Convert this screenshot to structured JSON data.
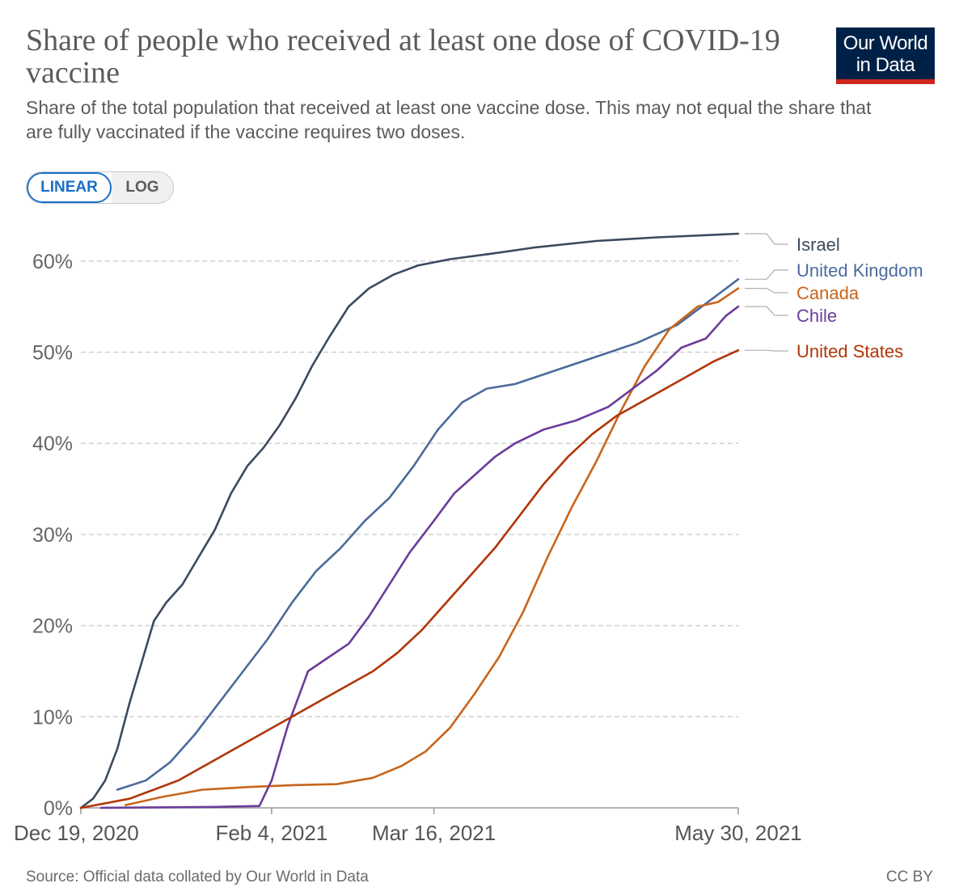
{
  "header": {
    "title": "Share of people who received at least one dose of COVID-19 vaccine",
    "subtitle": "Share of the total population that received at least one vaccine dose. This may not equal the share that are fully vaccinated if the vaccine requires two doses.",
    "logo_line1": "Our World",
    "logo_line2": "in Data",
    "colors": {
      "logo_bg": "#002147",
      "logo_accent": "#ce261e"
    }
  },
  "controls": {
    "linear_label": "LINEAR",
    "log_label": "LOG",
    "active": "linear"
  },
  "footer": {
    "source": "Source: Official data collated by Our World in Data",
    "license": "CC BY"
  },
  "chart_data": {
    "type": "line",
    "title": "Share of people who received at least one dose of COVID-19 vaccine",
    "xlabel": "",
    "ylabel": "",
    "xlim": [
      "2020-12-19",
      "2021-05-30"
    ],
    "ylim": [
      0,
      63
    ],
    "x_ticks": [
      "2020-12-19",
      "2021-02-04",
      "2021-03-16",
      "2021-05-30"
    ],
    "x_tick_labels": [
      "Dec 19, 2020",
      "Feb 4, 2021",
      "Mar 16, 2021",
      "May 30, 2021"
    ],
    "y_ticks": [
      0,
      10,
      20,
      30,
      40,
      50,
      60
    ],
    "y_tick_labels": [
      "0%",
      "10%",
      "20%",
      "30%",
      "40%",
      "50%",
      "60%"
    ],
    "grid": "horizontal-dashed",
    "legend": "right, labels at line ends",
    "series": [
      {
        "name": "Israel",
        "color": "#3c4a5e",
        "points": [
          [
            "2020-12-19",
            0
          ],
          [
            "2020-12-22",
            1
          ],
          [
            "2020-12-25",
            3
          ],
          [
            "2020-12-28",
            6.5
          ],
          [
            "2020-12-31",
            11.5
          ],
          [
            "2021-01-03",
            16
          ],
          [
            "2021-01-06",
            20.5
          ],
          [
            "2021-01-09",
            22.5
          ],
          [
            "2021-01-13",
            24.5
          ],
          [
            "2021-01-17",
            27.5
          ],
          [
            "2021-01-21",
            30.5
          ],
          [
            "2021-01-25",
            34.5
          ],
          [
            "2021-01-29",
            37.5
          ],
          [
            "2021-02-02",
            39.5
          ],
          [
            "2021-02-06",
            42
          ],
          [
            "2021-02-10",
            45
          ],
          [
            "2021-02-14",
            48.5
          ],
          [
            "2021-02-18",
            51.5
          ],
          [
            "2021-02-23",
            55
          ],
          [
            "2021-02-28",
            57
          ],
          [
            "2021-03-06",
            58.5
          ],
          [
            "2021-03-12",
            59.5
          ],
          [
            "2021-03-20",
            60.2
          ],
          [
            "2021-03-30",
            60.8
          ],
          [
            "2021-04-10",
            61.5
          ],
          [
            "2021-04-25",
            62.2
          ],
          [
            "2021-05-10",
            62.6
          ],
          [
            "2021-05-30",
            63
          ]
        ]
      },
      {
        "name": "United Kingdom",
        "color": "#4c6a9c",
        "points": [
          [
            "2020-12-28",
            2
          ],
          [
            "2021-01-04",
            3
          ],
          [
            "2021-01-10",
            5
          ],
          [
            "2021-01-16",
            8
          ],
          [
            "2021-01-22",
            11.5
          ],
          [
            "2021-01-28",
            15
          ],
          [
            "2021-02-03",
            18.5
          ],
          [
            "2021-02-09",
            22.5
          ],
          [
            "2021-02-15",
            26
          ],
          [
            "2021-02-21",
            28.5
          ],
          [
            "2021-02-27",
            31.5
          ],
          [
            "2021-03-05",
            34
          ],
          [
            "2021-03-11",
            37.5
          ],
          [
            "2021-03-17",
            41.5
          ],
          [
            "2021-03-23",
            44.5
          ],
          [
            "2021-03-29",
            46
          ],
          [
            "2021-04-05",
            46.5
          ],
          [
            "2021-04-15",
            48
          ],
          [
            "2021-04-25",
            49.5
          ],
          [
            "2021-05-05",
            51
          ],
          [
            "2021-05-15",
            53
          ],
          [
            "2021-05-24",
            56
          ],
          [
            "2021-05-30",
            58
          ]
        ]
      },
      {
        "name": "Canada",
        "color": "#c8651c",
        "points": [
          [
            "2020-12-30",
            0.3
          ],
          [
            "2021-01-08",
            1.2
          ],
          [
            "2021-01-18",
            2
          ],
          [
            "2021-01-30",
            2.3
          ],
          [
            "2021-02-10",
            2.5
          ],
          [
            "2021-02-20",
            2.6
          ],
          [
            "2021-03-01",
            3.3
          ],
          [
            "2021-03-08",
            4.6
          ],
          [
            "2021-03-14",
            6.2
          ],
          [
            "2021-03-20",
            8.8
          ],
          [
            "2021-03-26",
            12.5
          ],
          [
            "2021-04-01",
            16.5
          ],
          [
            "2021-04-07",
            21.5
          ],
          [
            "2021-04-13",
            27.5
          ],
          [
            "2021-04-19",
            33
          ],
          [
            "2021-04-25",
            38
          ],
          [
            "2021-05-01",
            43.5
          ],
          [
            "2021-05-07",
            48.5
          ],
          [
            "2021-05-13",
            52.5
          ],
          [
            "2021-05-20",
            55
          ],
          [
            "2021-05-25",
            55.5
          ],
          [
            "2021-05-30",
            57
          ]
        ]
      },
      {
        "name": "Chile",
        "color": "#6a3d9a",
        "points": [
          [
            "2020-12-24",
            0
          ],
          [
            "2021-01-20",
            0.1
          ],
          [
            "2021-02-01",
            0.2
          ],
          [
            "2021-02-04",
            3
          ],
          [
            "2021-02-08",
            9
          ],
          [
            "2021-02-13",
            15
          ],
          [
            "2021-02-18",
            16.5
          ],
          [
            "2021-02-23",
            18
          ],
          [
            "2021-02-28",
            21
          ],
          [
            "2021-03-05",
            24.5
          ],
          [
            "2021-03-10",
            28
          ],
          [
            "2021-03-16",
            31.5
          ],
          [
            "2021-03-21",
            34.5
          ],
          [
            "2021-03-26",
            36.5
          ],
          [
            "2021-03-31",
            38.5
          ],
          [
            "2021-04-05",
            40
          ],
          [
            "2021-04-12",
            41.5
          ],
          [
            "2021-04-20",
            42.5
          ],
          [
            "2021-04-28",
            44
          ],
          [
            "2021-05-04",
            46
          ],
          [
            "2021-05-10",
            48
          ],
          [
            "2021-05-16",
            50.5
          ],
          [
            "2021-05-22",
            51.5
          ],
          [
            "2021-05-27",
            54
          ],
          [
            "2021-05-30",
            55
          ]
        ]
      },
      {
        "name": "United States",
        "color": "#b13507",
        "points": [
          [
            "2020-12-19",
            0
          ],
          [
            "2020-12-25",
            0.5
          ],
          [
            "2020-12-31",
            1
          ],
          [
            "2021-01-06",
            2
          ],
          [
            "2021-01-12",
            3
          ],
          [
            "2021-01-18",
            4.5
          ],
          [
            "2021-01-24",
            6
          ],
          [
            "2021-01-30",
            7.5
          ],
          [
            "2021-02-05",
            9
          ],
          [
            "2021-02-11",
            10.5
          ],
          [
            "2021-02-17",
            12
          ],
          [
            "2021-02-23",
            13.5
          ],
          [
            "2021-03-01",
            15
          ],
          [
            "2021-03-07",
            17
          ],
          [
            "2021-03-13",
            19.5
          ],
          [
            "2021-03-19",
            22.5
          ],
          [
            "2021-03-25",
            25.5
          ],
          [
            "2021-03-31",
            28.5
          ],
          [
            "2021-04-06",
            32
          ],
          [
            "2021-04-12",
            35.5
          ],
          [
            "2021-04-18",
            38.5
          ],
          [
            "2021-04-24",
            41
          ],
          [
            "2021-04-30",
            43
          ],
          [
            "2021-05-06",
            44.5
          ],
          [
            "2021-05-12",
            46
          ],
          [
            "2021-05-18",
            47.5
          ],
          [
            "2021-05-24",
            49
          ],
          [
            "2021-05-30",
            50.2
          ]
        ]
      }
    ]
  }
}
